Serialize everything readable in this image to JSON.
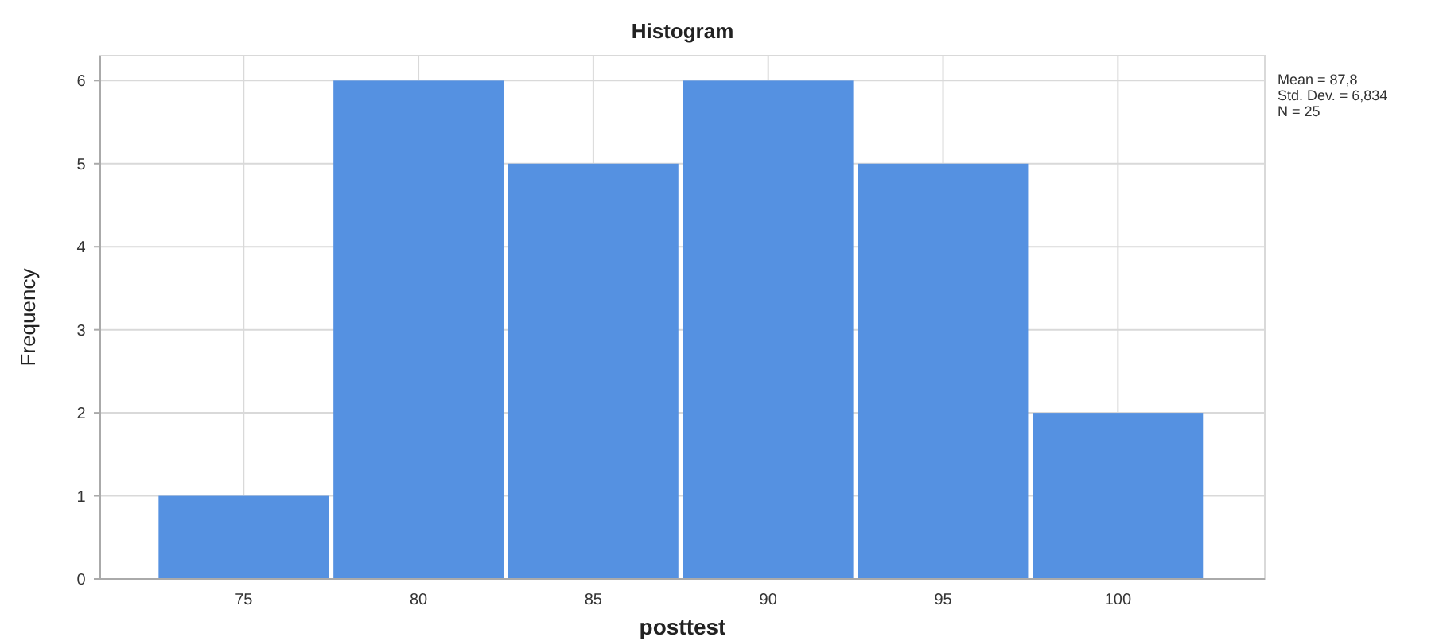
{
  "chart_data": {
    "type": "histogram",
    "title": "Histogram",
    "xlabel": "posttest",
    "ylabel": "Frequency",
    "bins": [
      72.5,
      77.5,
      82.5,
      87.5,
      92.5,
      97.5,
      102.5
    ],
    "values": [
      1,
      6,
      5,
      6,
      5,
      2
    ],
    "color": "#5591e1",
    "xlim": [
      70.9,
      104.2
    ],
    "xticks": [
      75,
      80,
      85,
      90,
      95,
      100
    ],
    "ylim": [
      0,
      6.3
    ],
    "yticks": [
      0,
      1,
      2,
      3,
      4,
      5,
      6
    ],
    "grid": true,
    "annotations": [
      "Mean = 87,8",
      "Std. Dev. = 6,834",
      "N = 25"
    ]
  }
}
